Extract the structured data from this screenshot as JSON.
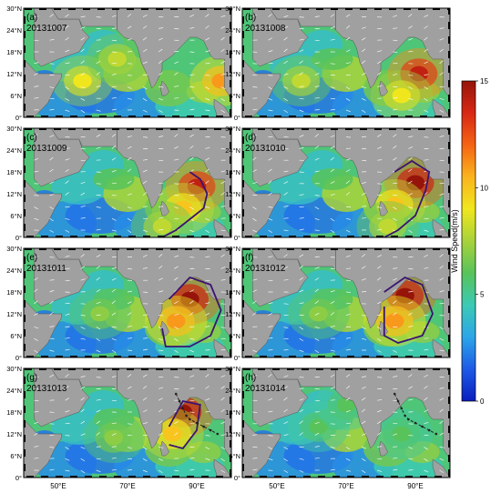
{
  "chart_data": {
    "type": "heatmap",
    "colorbar": {
      "label": "Wind Speed(m/s)",
      "min": 0,
      "max": 15,
      "ticks": [
        0,
        5,
        10,
        15
      ],
      "colors": [
        "#0a1ebe",
        "#1e5ae6",
        "#2ca6e8",
        "#3cc9b4",
        "#58c35a",
        "#a8d23c",
        "#f0e61e",
        "#fab41e",
        "#f56414",
        "#d72814",
        "#96140a"
      ]
    },
    "x_ticks": [
      "50°E",
      "70°E",
      "90°E"
    ],
    "y_ticks": [
      "0°",
      "6°N",
      "12°N",
      "18°N",
      "24°N",
      "30°N"
    ],
    "xlim": [
      40,
      100
    ],
    "ylim": [
      0,
      30
    ],
    "arrow_color": "#ffffff",
    "track_color": "#222222",
    "land_color": "#a0a0a0",
    "panels": [
      {
        "tag": "(a)",
        "date": "20131007",
        "hotspots": [
          {
            "lon": 97,
            "lat": 10,
            "speed": 11
          },
          {
            "lon": 57,
            "lat": 10,
            "speed": 9
          },
          {
            "lon": 67,
            "lat": 16,
            "speed": 8
          }
        ],
        "track": []
      },
      {
        "tag": "(b)",
        "date": "20131008",
        "hotspots": [
          {
            "lon": 91,
            "lat": 12,
            "speed": 14
          },
          {
            "lon": 86,
            "lat": 6,
            "speed": 9
          },
          {
            "lon": 57,
            "lat": 10,
            "speed": 8
          }
        ],
        "track": []
      },
      {
        "tag": "(c)",
        "date": "20131009",
        "hotspots": [
          {
            "lon": 90,
            "lat": 14,
            "speed": 14
          },
          {
            "lon": 86,
            "lat": 8,
            "speed": 10
          },
          {
            "lon": 80,
            "lat": 3,
            "speed": 8
          }
        ],
        "track": [
          [
            88,
            18
          ],
          [
            91,
            16
          ],
          [
            93,
            12
          ],
          [
            92,
            8
          ],
          [
            88,
            5
          ],
          [
            84,
            2
          ],
          [
            80,
            0
          ]
        ]
      },
      {
        "tag": "(d)",
        "date": "20131010",
        "hotspots": [
          {
            "lon": 90,
            "lat": 15,
            "speed": 15
          },
          {
            "lon": 84,
            "lat": 9,
            "speed": 10
          },
          {
            "lon": 82,
            "lat": 3,
            "speed": 8
          }
        ],
        "track": [
          [
            84,
            18
          ],
          [
            89,
            21
          ],
          [
            94,
            18
          ],
          [
            93,
            13
          ],
          [
            90,
            6
          ],
          [
            85,
            2
          ],
          [
            81,
            0
          ]
        ]
      },
      {
        "tag": "(e)",
        "date": "20131011",
        "hotspots": [
          {
            "lon": 88,
            "lat": 16,
            "speed": 15
          },
          {
            "lon": 84,
            "lat": 10,
            "speed": 11
          },
          {
            "lon": 62,
            "lat": 12,
            "speed": 7
          }
        ],
        "track": [
          [
            82,
            16
          ],
          [
            88,
            22
          ],
          [
            94,
            20
          ],
          [
            97,
            13
          ],
          [
            94,
            6
          ],
          [
            88,
            3
          ],
          [
            81,
            3
          ],
          [
            80,
            8
          ]
        ]
      },
      {
        "tag": "(f)",
        "date": "20131012",
        "hotspots": [
          {
            "lon": 87,
            "lat": 17,
            "speed": 15
          },
          {
            "lon": 84,
            "lat": 10,
            "speed": 11
          },
          {
            "lon": 62,
            "lat": 12,
            "speed": 7
          }
        ],
        "track": [
          [
            81,
            18
          ],
          [
            87,
            22
          ],
          [
            92,
            20
          ],
          [
            95,
            12
          ],
          [
            92,
            6
          ],
          [
            85,
            4
          ],
          [
            81,
            6
          ],
          [
            81,
            14
          ]
        ]
      },
      {
        "tag": "(g)",
        "date": "20131013",
        "hotspots": [
          {
            "lon": 86,
            "lat": 18,
            "speed": 15
          },
          {
            "lon": 83,
            "lat": 12,
            "speed": 10
          },
          {
            "lon": 66,
            "lat": 11,
            "speed": 7
          }
        ],
        "track": [
          [
            82,
            14
          ],
          [
            86,
            21
          ],
          [
            91,
            20
          ],
          [
            90,
            13
          ],
          [
            86,
            8
          ],
          [
            82,
            9
          ]
        ]
      },
      {
        "tag": "(h)",
        "date": "20131014",
        "hotspots": [
          {
            "lon": 62,
            "lat": 14,
            "speed": 6
          },
          {
            "lon": 86,
            "lat": 12,
            "speed": 6
          },
          {
            "lon": 70,
            "lat": 20,
            "speed": 6
          }
        ],
        "track": []
      }
    ],
    "storm_track": [
      [
        84,
        23
      ],
      [
        85,
        21
      ],
      [
        86,
        19
      ],
      [
        87,
        17
      ],
      [
        88,
        16
      ],
      [
        90,
        15
      ],
      [
        92,
        14
      ],
      [
        94,
        13
      ],
      [
        96,
        12
      ]
    ],
    "storm_track_panels": [
      "(g)",
      "(h)"
    ]
  }
}
